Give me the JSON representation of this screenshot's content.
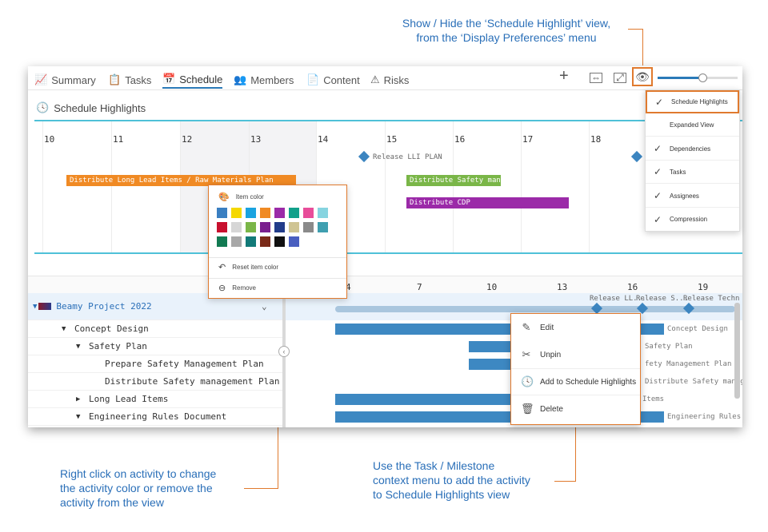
{
  "callouts": {
    "top_line1": "Show / Hide the ‘Schedule Highlight’ view,",
    "top_line2": "from the ‘Display Preferences’ menu",
    "left_line1": "Right click on activity to change",
    "left_line2": "the activity color or remove the",
    "left_line3": "activity from the view",
    "right_line1": "Use the Task / Milestone",
    "right_line2": "context menu to add the activity",
    "right_line3": "to Schedule Highlights view"
  },
  "tabs": [
    {
      "label": "Summary",
      "icon": "chart-line-icon"
    },
    {
      "label": "Tasks",
      "icon": "clipboard-icon"
    },
    {
      "label": "Schedule",
      "icon": "calendar-icon"
    },
    {
      "label": "Members",
      "icon": "users-icon"
    },
    {
      "label": "Content",
      "icon": "document-icon"
    },
    {
      "label": "Risks",
      "icon": "warning-icon"
    }
  ],
  "active_tab": "Schedule",
  "schedule_highlights": {
    "title": "Schedule Highlights",
    "days": [
      "10",
      "11",
      "12",
      "13",
      "14",
      "15",
      "16",
      "17",
      "18"
    ],
    "milestone": "Release LLI PLAN",
    "bars": [
      {
        "label": "Distribute Long Lead Items / Raw Materials Plan",
        "color": "#f08a24"
      },
      {
        "label": "Distribute Safety man...",
        "color": "#7ab648"
      },
      {
        "label": "Distribute CDP",
        "color": "#9b2aa8"
      }
    ]
  },
  "color_menu": {
    "title": "Item color",
    "swatches": [
      "#3a7fc1",
      "#f5d800",
      "#1aa3e0",
      "#f08a24",
      "#9b2aa8",
      "#12a08a",
      "#e84d9a",
      "#86d4e0",
      "#c8102e",
      "#d6d6d6",
      "#7ab648",
      "#7a1f8e",
      "#223c8a",
      "#cfc493",
      "#8a8a8a",
      "#3f9fb0",
      "#127a52",
      "#a8a8a8",
      "#127a78",
      "#7a2a18",
      "#111111",
      "#4a5fc0"
    ],
    "reset": "Reset item color",
    "remove": "Remove"
  },
  "gantt": {
    "ticks": [
      "4",
      "7",
      "10",
      "13",
      "16",
      "19"
    ],
    "milestones": [
      "Release LL...",
      "Release S...",
      "Release Techn"
    ],
    "rows": [
      {
        "label": "Beamy Project 2022",
        "caret": "▼"
      },
      {
        "label": "Concept Design",
        "caret": "▼"
      },
      {
        "label": "Safety Plan",
        "caret": "▼"
      },
      {
        "label": "Prepare Safety Management Plan",
        "caret": ""
      },
      {
        "label": "Distribute Safety management Plan",
        "caret": ""
      },
      {
        "label": "Long Lead Items",
        "caret": "▶"
      },
      {
        "label": "Engineering Rules Document",
        "caret": "▼"
      }
    ],
    "bar_labels": [
      "Concept Design",
      "Safety Plan",
      "fety Management Plan",
      "Distribute Safety manage",
      "Items",
      "Engineering Rules"
    ]
  },
  "context_menu": {
    "items": [
      {
        "label": "Edit",
        "icon": "pencil-icon"
      },
      {
        "label": "Unpin",
        "icon": "unpin-icon"
      },
      {
        "label": "Add to Schedule Highlights",
        "icon": "clock-icon"
      },
      {
        "label": "Delete",
        "icon": "trash-icon"
      }
    ]
  },
  "display_menu": {
    "items": [
      {
        "label": "Schedule Highlights",
        "checked": true
      },
      {
        "label": "Expanded View",
        "checked": false
      },
      {
        "label": "Dependencies",
        "checked": true
      },
      {
        "label": "Tasks",
        "checked": true
      },
      {
        "label": "Assignees",
        "checked": true
      },
      {
        "label": "Compression",
        "checked": true
      }
    ]
  },
  "colors": {
    "accent": "#2a7ab8",
    "highlight_border": "#e07a2e",
    "callout_text": "#2a6fb8",
    "gantt_bar": "#3d88c2"
  }
}
